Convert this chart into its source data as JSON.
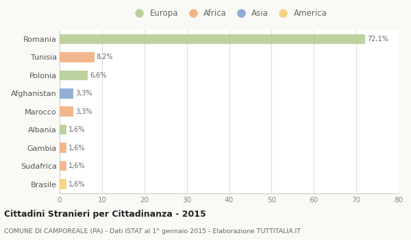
{
  "countries": [
    "Romania",
    "Tunisia",
    "Polonia",
    "Afghanistan",
    "Marocco",
    "Albania",
    "Gambia",
    "Sudafrica",
    "Brasile"
  ],
  "values": [
    72.1,
    8.2,
    6.6,
    3.3,
    3.3,
    1.6,
    1.6,
    1.6,
    1.6
  ],
  "labels": [
    "72,1%",
    "8,2%",
    "6,6%",
    "3,3%",
    "3,3%",
    "1,6%",
    "1,6%",
    "1,6%",
    "1,6%"
  ],
  "colors": [
    "#aec98a",
    "#f0a875",
    "#aec98a",
    "#7b9ecc",
    "#f0a875",
    "#aec98a",
    "#f0a875",
    "#f0a875",
    "#f5cc6e"
  ],
  "legend_labels": [
    "Europa",
    "Africa",
    "Asia",
    "America"
  ],
  "legend_colors": [
    "#aec98a",
    "#f0a875",
    "#7b9ecc",
    "#f5cc6e"
  ],
  "title": "Cittadini Stranieri per Cittadinanza - 2015",
  "subtitle": "COMUNE DI CAMPOREALE (PA) - Dati ISTAT al 1° gennaio 2015 - Elaborazione TUTTITALIA.IT",
  "xlim": [
    0,
    80
  ],
  "xticks": [
    0,
    10,
    20,
    30,
    40,
    50,
    60,
    70,
    80
  ],
  "bg_color": "#f9f9f6",
  "plot_bg_color": "#ffffff",
  "bar_height": 0.55
}
